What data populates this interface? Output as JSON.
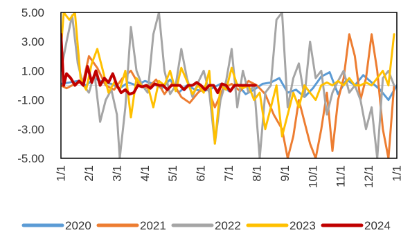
{
  "chart_data": {
    "type": "line",
    "title": "",
    "xlabel": "",
    "ylabel": "",
    "ylim": [
      -5,
      5
    ],
    "y_ticks": [
      "5.00",
      "3.00",
      "1.00",
      "-1.00",
      "-3.00",
      "-5.00"
    ],
    "y_tick_values": [
      5,
      3,
      1,
      -1,
      -3,
      -5
    ],
    "x_ticks": [
      "1/1",
      "2/1",
      "3/1",
      "4/1",
      "5/1",
      "6/1",
      "7/1",
      "8/1",
      "9/1",
      "10/1",
      "11/1",
      "12/1",
      "1/1"
    ],
    "xlim": [
      1,
      13
    ],
    "grid": false,
    "legend_position": "bottom",
    "series": [
      {
        "name": "2020",
        "color": "#5B9BD5",
        "x": [
          1,
          1.3,
          1.6,
          1.9,
          2.2,
          2.5,
          2.8,
          3.1,
          3.4,
          3.7,
          4.0,
          4.3,
          4.6,
          4.9,
          5.2,
          5.5,
          5.8,
          6.1,
          6.4,
          6.7,
          7.0,
          7.3,
          7.6,
          7.9,
          8.2,
          8.5,
          8.8,
          9.1,
          9.4,
          9.7,
          10.0,
          10.3,
          10.6,
          10.9,
          11.2,
          11.5,
          11.8,
          12.1,
          12.4,
          12.7,
          13
        ],
        "values": [
          0.1,
          0.2,
          0.3,
          0.0,
          0.5,
          0.2,
          0.1,
          -0.2,
          0.2,
          0.0,
          0.3,
          0.1,
          -0.2,
          0.4,
          -0.5,
          0.0,
          -0.3,
          -0.4,
          -0.2,
          0.1,
          -0.4,
          0.1,
          -0.6,
          -0.3,
          0.1,
          0.2,
          0.5,
          -0.5,
          -0.3,
          -0.8,
          -0.2,
          0.6,
          0.9,
          -0.6,
          0.4,
          0.0,
          0.7,
          0.2,
          -0.3,
          -1.0,
          0.0
        ]
      },
      {
        "name": "2021",
        "color": "#ED7D31",
        "x": [
          1,
          1.2,
          1.5,
          1.8,
          2.0,
          2.3,
          2.6,
          2.9,
          3.2,
          3.5,
          3.8,
          4.1,
          4.4,
          4.7,
          5.0,
          5.3,
          5.6,
          5.9,
          6.2,
          6.5,
          6.8,
          7.1,
          7.4,
          7.7,
          8.0,
          8.3,
          8.6,
          8.9,
          9.1,
          9.3,
          9.5,
          9.7,
          9.9,
          10.1,
          10.3,
          10.5,
          10.7,
          10.9,
          11.1,
          11.3,
          11.5,
          11.7,
          11.9,
          12.1,
          12.3,
          12.5,
          12.7,
          12.9
        ],
        "values": [
          0.0,
          -0.2,
          0.1,
          0.3,
          2.0,
          1.2,
          0.0,
          -0.3,
          0.5,
          1.0,
          0.0,
          -0.2,
          0.4,
          -0.6,
          0.2,
          -0.8,
          -1.2,
          -0.5,
          0.0,
          -1.5,
          -0.2,
          0.1,
          -0.4,
          0.3,
          0.0,
          -0.6,
          -2.0,
          -3.0,
          -5.0,
          -3.5,
          -1.0,
          -2.5,
          -4.0,
          -5.0,
          -3.0,
          -0.5,
          -4.5,
          -1.0,
          0.5,
          3.5,
          2.0,
          -1.0,
          0.5,
          3.5,
          1.0,
          -3.0,
          -5.0,
          0.0
        ]
      },
      {
        "name": "2022",
        "color": "#A5A5A5",
        "x": [
          1,
          1.2,
          1.4,
          1.6,
          1.8,
          2.0,
          2.2,
          2.4,
          2.6,
          2.8,
          3.0,
          3.1,
          3.3,
          3.5,
          3.7,
          3.9,
          4.1,
          4.3,
          4.5,
          4.7,
          4.9,
          5.1,
          5.3,
          5.5,
          5.7,
          5.9,
          6.1,
          6.3,
          6.5,
          6.7,
          6.9,
          7.1,
          7.3,
          7.5,
          7.7,
          7.9,
          8.1,
          8.3,
          8.5,
          8.7,
          8.9,
          9.1,
          9.3,
          9.5,
          9.7,
          9.9,
          10.1,
          10.3,
          10.5,
          10.7,
          10.9,
          11.1,
          11.3,
          11.5,
          11.7,
          11.9,
          12.1,
          12.3,
          12.5,
          12.7,
          12.9
        ],
        "values": [
          1.0,
          3.0,
          4.8,
          1.5,
          0.0,
          -0.5,
          0.8,
          -2.5,
          -1.0,
          -0.3,
          -2.0,
          -5.0,
          -1.5,
          4.0,
          1.0,
          0.0,
          -0.5,
          3.5,
          5.0,
          1.0,
          -0.6,
          0.0,
          2.5,
          0.5,
          -0.8,
          0.2,
          1.0,
          -0.5,
          -4.0,
          -1.0,
          0.3,
          2.5,
          -1.5,
          1.0,
          -0.5,
          0.0,
          -5.0,
          -0.5,
          0.0,
          4.5,
          5.0,
          -1.5,
          0.5,
          1.5,
          -0.8,
          3.0,
          0.5,
          1.0,
          -2.0,
          -0.5,
          0.3,
          1.0,
          -0.5,
          0.0,
          -1.0,
          -3.0,
          -1.5,
          -5.0,
          0.5,
          1.0,
          0.0
        ]
      },
      {
        "name": "2023",
        "color": "#FFC000",
        "x": [
          1,
          1.1,
          1.3,
          1.5,
          1.7,
          1.9,
          2.1,
          2.3,
          2.5,
          2.7,
          2.9,
          3.1,
          3.3,
          3.5,
          3.7,
          3.9,
          4.1,
          4.3,
          4.5,
          4.7,
          4.9,
          5.1,
          5.3,
          5.5,
          5.7,
          5.9,
          6.1,
          6.3,
          6.5,
          6.7,
          6.9,
          7.1,
          7.3,
          7.5,
          7.7,
          7.9,
          8.1,
          8.3,
          8.5,
          8.7,
          8.9,
          9.1,
          9.3,
          9.5,
          9.7,
          9.9,
          10.1,
          10.3,
          10.5,
          10.7,
          10.9,
          11.1,
          11.3,
          11.5,
          11.7,
          11.9,
          12.1,
          12.3,
          12.5,
          12.7,
          12.9
        ],
        "values": [
          2.5,
          5.0,
          4.5,
          5.0,
          0.5,
          -0.3,
          1.5,
          2.5,
          1.0,
          -0.5,
          0.2,
          -0.3,
          1.0,
          -2.2,
          0.5,
          -0.1,
          0.0,
          -1.5,
          0.3,
          0.0,
          1.0,
          -0.4,
          1.2,
          0.3,
          -0.6,
          0.0,
          -0.5,
          1.0,
          -4.0,
          0.0,
          -0.3,
          1.2,
          0.0,
          -0.2,
          0.0,
          -1.0,
          -0.5,
          -3.0,
          -1.5,
          0.0,
          -3.5,
          -2.0,
          -0.5,
          -1.5,
          0.0,
          -0.5,
          -1.0,
          0.0,
          0.2,
          0.0,
          0.3,
          0.0,
          0.5,
          0.0,
          0.0,
          0.2,
          0.0,
          0.5,
          1.0,
          0.0,
          3.5
        ]
      },
      {
        "name": "2024",
        "color": "#C00000",
        "x": [
          1,
          1.1,
          1.2,
          1.35,
          1.5,
          1.65,
          1.8,
          1.95,
          2.1,
          2.25,
          2.4,
          2.55,
          2.7,
          2.85,
          3.0,
          3.15,
          3.3,
          3.45,
          3.6,
          3.75,
          3.9,
          4.05,
          4.2,
          4.35,
          4.5,
          4.65,
          4.8,
          4.95,
          5.1,
          5.25,
          5.4,
          5.55,
          5.7,
          5.85,
          6.0,
          6.15,
          6.3,
          6.45,
          6.6,
          6.75,
          6.9,
          7.05,
          7.2,
          7.35,
          7.5,
          7.65,
          7.8,
          7.95
        ],
        "values": [
          3.5,
          0.0,
          0.8,
          0.5,
          0.0,
          0.3,
          0.0,
          1.3,
          0.2,
          1.0,
          0.0,
          0.5,
          0.2,
          0.8,
          0.0,
          -0.5,
          -0.3,
          -0.6,
          -0.5,
          0.0,
          -0.1,
          0.0,
          -0.2,
          0.1,
          0.0,
          0.0,
          -0.3,
          0.0,
          0.0,
          0.0,
          -0.3,
          0.0,
          0.0,
          0.2,
          0.0,
          -0.3,
          0.0,
          0.0,
          -0.5,
          0.1,
          0.0,
          -0.4,
          0.0,
          0.0,
          0.0,
          0.0,
          0.0,
          0.0
        ]
      }
    ]
  }
}
